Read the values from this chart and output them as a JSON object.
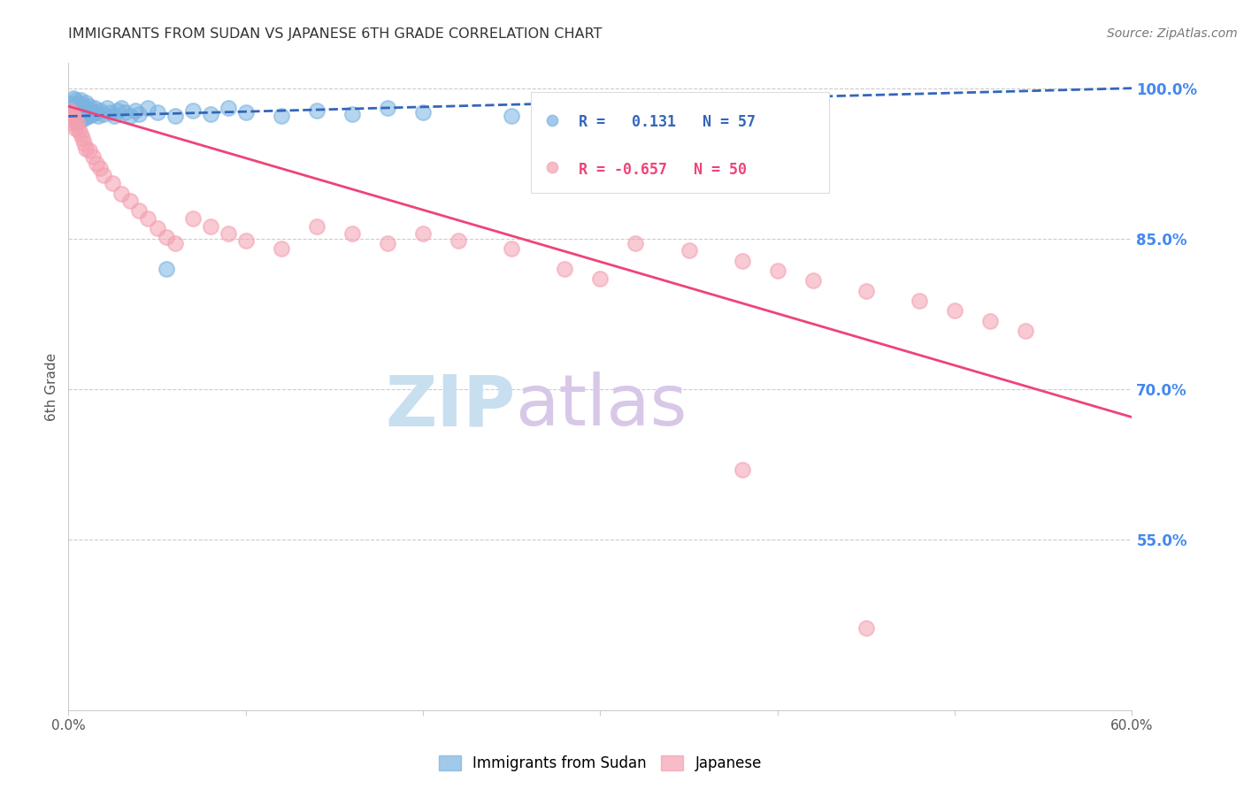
{
  "title": "IMMIGRANTS FROM SUDAN VS JAPANESE 6TH GRADE CORRELATION CHART",
  "source": "Source: ZipAtlas.com",
  "ylabel": "6th Grade",
  "legend_blue_label": "Immigrants from Sudan",
  "legend_pink_label": "Japanese",
  "R_blue": 0.131,
  "N_blue": 57,
  "R_pink": -0.657,
  "N_pink": 50,
  "x_min": 0.0,
  "x_max": 0.6,
  "y_min": 0.38,
  "y_max": 1.025,
  "right_yticks": [
    1.0,
    0.85,
    0.7,
    0.55
  ],
  "right_yticklabels": [
    "100.0%",
    "85.0%",
    "70.0%",
    "55.0%"
  ],
  "xticks": [
    0.0,
    0.1,
    0.2,
    0.3,
    0.4,
    0.5,
    0.6
  ],
  "xticklabels": [
    "0.0%",
    "",
    "",
    "",
    "",
    "",
    "60.0%"
  ],
  "blue_color": "#7ab3e0",
  "pink_color": "#f4a0b0",
  "blue_line_color": "#3366bb",
  "pink_line_color": "#ee4477",
  "grid_color": "#cccccc",
  "watermark_zip_color": "#c8dff0",
  "watermark_atlas_color": "#d8c8e8",
  "title_color": "#333333",
  "right_tick_color": "#4488ee",
  "blue_scatter_x": [
    0.001,
    0.002,
    0.002,
    0.003,
    0.003,
    0.003,
    0.004,
    0.004,
    0.004,
    0.005,
    0.005,
    0.005,
    0.006,
    0.006,
    0.007,
    0.007,
    0.007,
    0.008,
    0.008,
    0.009,
    0.009,
    0.01,
    0.01,
    0.011,
    0.012,
    0.012,
    0.013,
    0.014,
    0.015,
    0.016,
    0.017,
    0.018,
    0.02,
    0.022,
    0.024,
    0.026,
    0.028,
    0.03,
    0.032,
    0.035,
    0.038,
    0.04,
    0.045,
    0.05,
    0.055,
    0.06,
    0.07,
    0.08,
    0.09,
    0.1,
    0.12,
    0.14,
    0.16,
    0.18,
    0.2,
    0.25,
    0.3
  ],
  "blue_scatter_y": [
    0.98,
    0.985,
    0.975,
    0.99,
    0.98,
    0.972,
    0.988,
    0.978,
    0.968,
    0.985,
    0.975,
    0.965,
    0.982,
    0.972,
    0.988,
    0.978,
    0.968,
    0.984,
    0.974,
    0.98,
    0.97,
    0.986,
    0.976,
    0.972,
    0.982,
    0.972,
    0.978,
    0.974,
    0.98,
    0.976,
    0.972,
    0.978,
    0.974,
    0.98,
    0.976,
    0.972,
    0.978,
    0.98,
    0.976,
    0.972,
    0.978,
    0.974,
    0.98,
    0.976,
    0.82,
    0.972,
    0.978,
    0.974,
    0.98,
    0.976,
    0.972,
    0.978,
    0.974,
    0.98,
    0.976,
    0.972,
    0.978
  ],
  "pink_scatter_x": [
    0.001,
    0.002,
    0.002,
    0.003,
    0.004,
    0.004,
    0.005,
    0.006,
    0.007,
    0.008,
    0.009,
    0.01,
    0.012,
    0.014,
    0.016,
    0.018,
    0.02,
    0.025,
    0.03,
    0.035,
    0.04,
    0.045,
    0.05,
    0.055,
    0.06,
    0.07,
    0.08,
    0.09,
    0.1,
    0.12,
    0.14,
    0.16,
    0.18,
    0.2,
    0.22,
    0.25,
    0.28,
    0.3,
    0.32,
    0.35,
    0.38,
    0.4,
    0.42,
    0.45,
    0.48,
    0.5,
    0.52,
    0.54,
    0.38,
    0.45
  ],
  "pink_scatter_y": [
    0.978,
    0.975,
    0.965,
    0.972,
    0.96,
    0.97,
    0.965,
    0.958,
    0.955,
    0.95,
    0.945,
    0.94,
    0.938,
    0.932,
    0.925,
    0.92,
    0.913,
    0.905,
    0.895,
    0.888,
    0.878,
    0.87,
    0.86,
    0.852,
    0.845,
    0.87,
    0.862,
    0.855,
    0.848,
    0.84,
    0.862,
    0.855,
    0.845,
    0.855,
    0.848,
    0.84,
    0.82,
    0.81,
    0.845,
    0.838,
    0.828,
    0.818,
    0.808,
    0.798,
    0.788,
    0.778,
    0.768,
    0.758,
    0.62,
    0.462
  ],
  "blue_trendline_x": [
    0.0,
    0.6
  ],
  "blue_trendline_y": [
    0.972,
    1.0
  ],
  "pink_trendline_x": [
    0.0,
    0.6
  ],
  "pink_trendline_y": [
    0.982,
    0.672
  ]
}
